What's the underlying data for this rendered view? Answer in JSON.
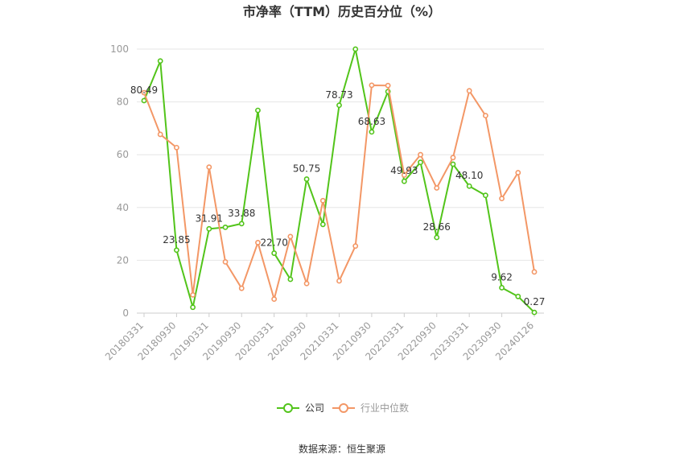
{
  "chart_data": {
    "type": "line",
    "title": "市净率（TTM）历史百分位（%）",
    "source": "数据来源：恒生聚源",
    "ylim": [
      0,
      100
    ],
    "yticks": [
      0,
      20,
      40,
      60,
      80,
      100
    ],
    "grid": true,
    "legend_position": "bottom",
    "x_tick_labels": [
      "20180331",
      "20180930",
      "20190331",
      "20190930",
      "20200331",
      "20200930",
      "20210331",
      "20210930",
      "20220331",
      "20220930",
      "20230331",
      "20230930",
      "20240126"
    ],
    "series": [
      {
        "name": "公司",
        "color": "#52c41a",
        "values": [
          80.49,
          95.5,
          23.85,
          2.2,
          31.91,
          32.5,
          33.88,
          76.8,
          22.7,
          12.8,
          50.75,
          33.6,
          78.73,
          100,
          68.63,
          83.9,
          49.93,
          57.1,
          28.66,
          56.4,
          48.1,
          44.6,
          9.62,
          6.3,
          0.27
        ],
        "labels": [
          "80.49",
          "",
          "23.85",
          "",
          "31.91",
          "",
          "33.88",
          "",
          "22.70",
          "",
          "50.75",
          "",
          "78.73",
          "",
          "68.63",
          "",
          "49.93",
          "",
          "28.66",
          "",
          "48.10",
          "",
          "9.62",
          "",
          "0.27"
        ]
      },
      {
        "name": "行业中位数",
        "color": "#f39766",
        "values": [
          83.5,
          67.7,
          62.7,
          6.9,
          55.3,
          19.4,
          9.4,
          26.7,
          5.3,
          29.0,
          11.2,
          42.6,
          12.2,
          25.4,
          86.3,
          86.2,
          52.3,
          60.0,
          47.4,
          58.9,
          84.2,
          74.8,
          43.4,
          53.2,
          15.6
        ]
      }
    ]
  },
  "legend": {
    "company": "公司",
    "industry": "行业中位数"
  }
}
